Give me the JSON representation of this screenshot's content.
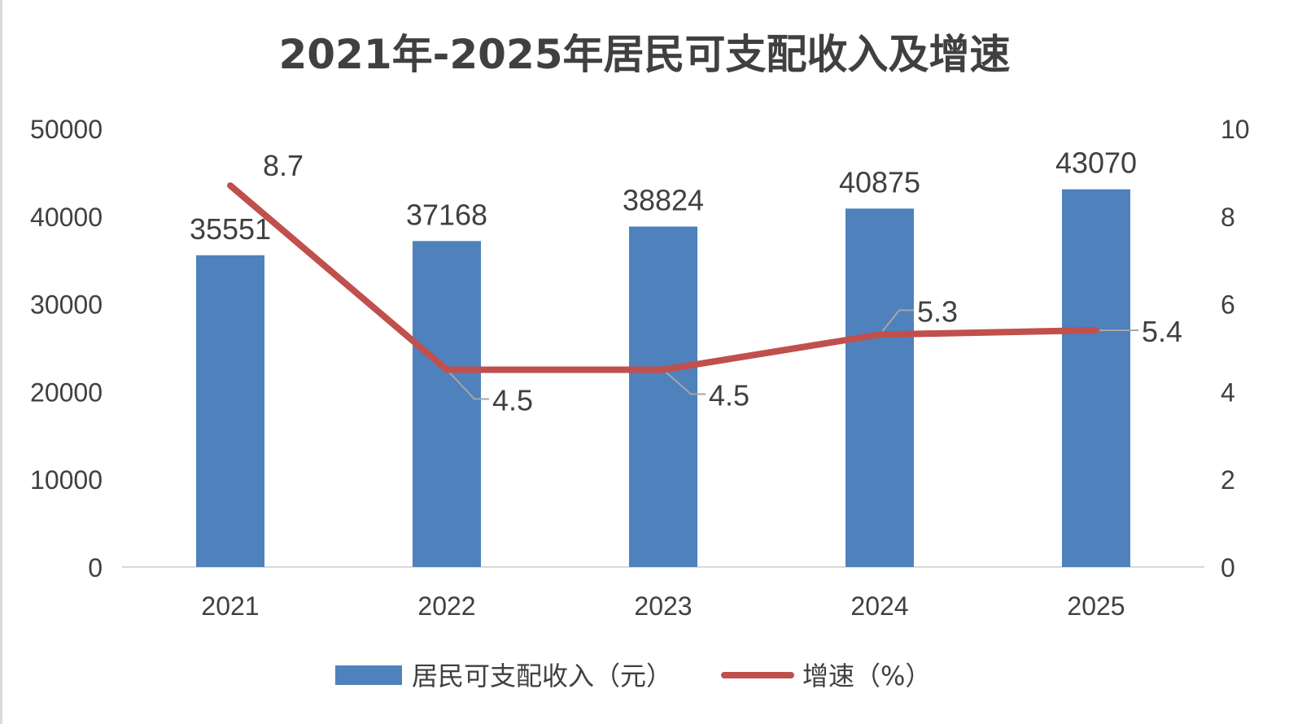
{
  "chart_data": {
    "type": "bar",
    "title": "2021年-2025年居民可支配收入及增速",
    "categories": [
      "2021",
      "2022",
      "2023",
      "2024",
      "2025"
    ],
    "series": [
      {
        "name": "居民可支配收入（元）",
        "type": "bar",
        "axis": "left",
        "values": [
          35551,
          37168,
          38824,
          40875,
          43070
        ],
        "color": "#4f81bd"
      },
      {
        "name": "增速（%）",
        "type": "line",
        "axis": "right",
        "values": [
          8.7,
          4.5,
          4.5,
          5.3,
          5.4
        ],
        "color": "#c0504d"
      }
    ],
    "y_left": {
      "min": 0,
      "max": 50000,
      "ticks": [
        0,
        10000,
        20000,
        30000,
        40000,
        50000
      ]
    },
    "y_right": {
      "min": 0,
      "max": 10,
      "ticks": [
        0,
        2,
        4,
        6,
        8,
        10
      ]
    },
    "grid": false,
    "legend": "bottom"
  }
}
